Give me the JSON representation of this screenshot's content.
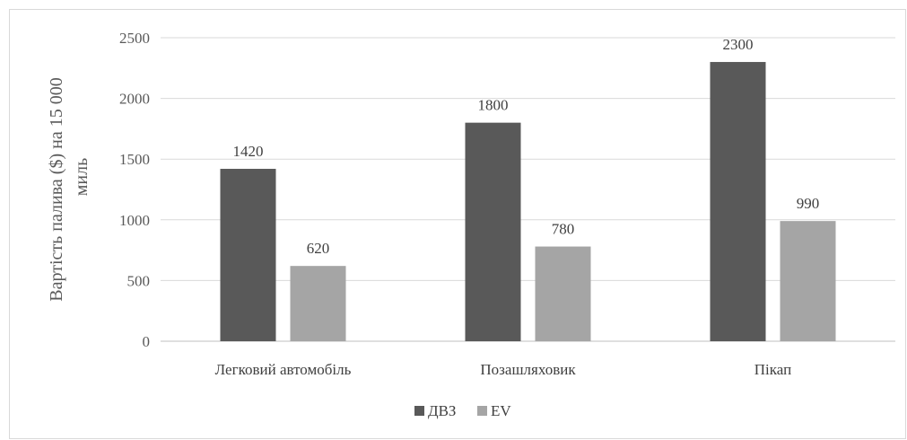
{
  "chart_data": {
    "type": "bar",
    "categories": [
      "Легковий автомобіль",
      "Позашляховик",
      "Пікап"
    ],
    "series": [
      {
        "name": "ДВЗ",
        "values": [
          1420,
          1800,
          2300
        ],
        "color": "#595959"
      },
      {
        "name": "EV",
        "values": [
          620,
          780,
          990
        ],
        "color": "#a5a5a5"
      }
    ],
    "title": "",
    "xlabel": "",
    "ylabel_lines": [
      "Вартість палива ($) на 15 000",
      "миль"
    ],
    "ylim": [
      0,
      2500
    ],
    "yticks": [
      0,
      500,
      1000,
      1500,
      2000,
      2500
    ],
    "grid": true,
    "legend": "bottom",
    "data_labels": true
  }
}
